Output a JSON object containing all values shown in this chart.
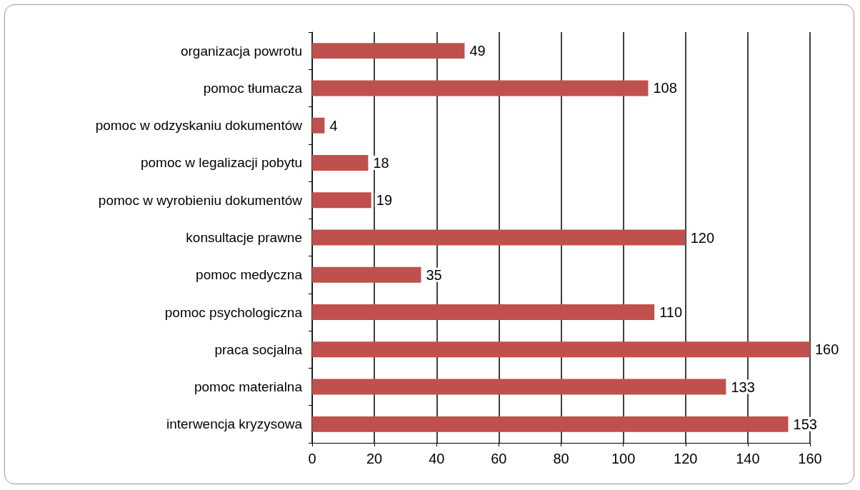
{
  "chart_data": {
    "type": "bar",
    "orientation": "horizontal",
    "categories": [
      "organizacja powrotu",
      "pomoc tłumacza",
      "pomoc w odzyskaniu dokumentów",
      "pomoc w legalizacji pobytu",
      "pomoc w wyrobieniu dokumentów",
      "konsultacje prawne",
      "pomoc medyczna",
      "pomoc psychologiczna",
      "praca socjalna",
      "pomoc materialna",
      "interwencja kryzysowa"
    ],
    "values": [
      49,
      108,
      4,
      18,
      19,
      120,
      35,
      110,
      160,
      133,
      153
    ],
    "color": "#c0504d",
    "xlim": [
      0,
      160
    ],
    "xticks": [
      0,
      20,
      40,
      60,
      80,
      100,
      120,
      140,
      160
    ],
    "grid": "x",
    "data_labels": true
  }
}
